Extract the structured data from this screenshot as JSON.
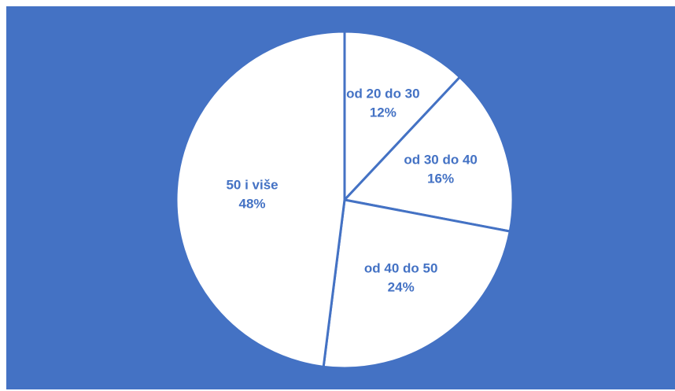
{
  "chart_data": {
    "type": "pie",
    "title": "",
    "categories": [
      "od 20 do 30",
      "od 30 do 40",
      "od 40 do 50",
      "50 i više"
    ],
    "values": [
      12,
      16,
      24,
      48
    ],
    "value_labels": [
      "12%",
      "16%",
      "24%",
      "48%"
    ],
    "start_angle_deg": 0,
    "direction": "clockwise",
    "legend": "none",
    "colors": {
      "background": "#4472c4",
      "slice_fill": "#ffffff",
      "slice_border": "#4472c4",
      "label_text": "#4472c4"
    }
  }
}
